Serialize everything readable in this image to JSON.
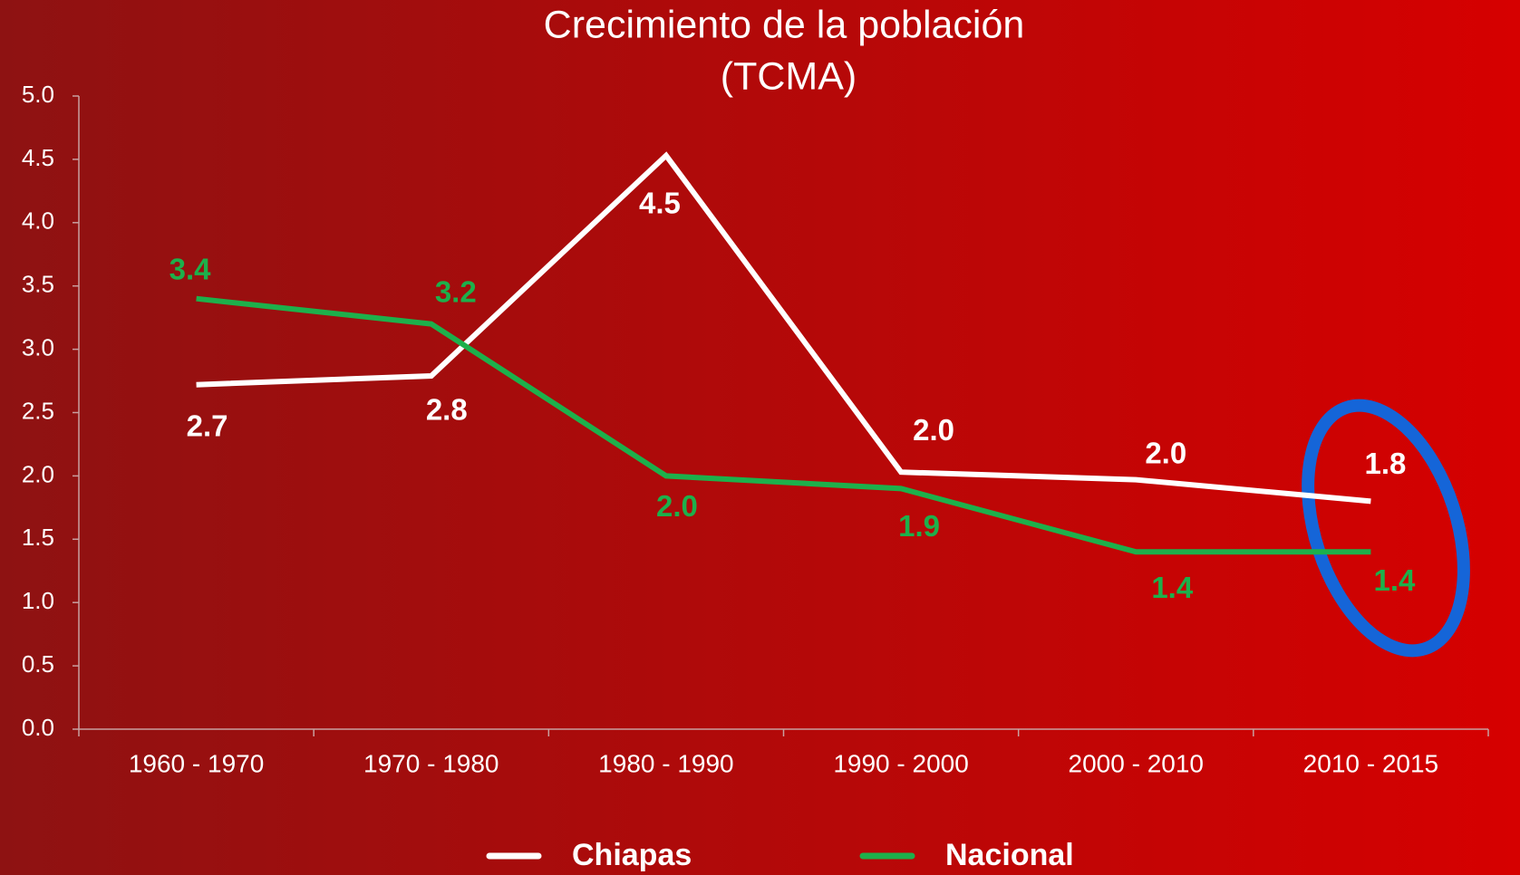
{
  "chart_data": {
    "type": "line",
    "title": "Crecimiento de la población",
    "subtitle": "(TCMA)",
    "categories": [
      "1960 - 1970",
      "1970 - 1980",
      "1980 - 1990",
      "1990 - 2000",
      "2000 - 2010",
      "2010 - 2015"
    ],
    "series": [
      {
        "name": "Chiapas",
        "color": "#ffffff",
        "values": [
          2.72,
          2.79,
          4.53,
          2.03,
          1.97,
          1.8
        ],
        "value_labels": [
          "2.7",
          "2.8",
          "4.5",
          "2.0",
          "2.0",
          "1.8"
        ]
      },
      {
        "name": "Nacional",
        "color": "#1db04b",
        "values": [
          3.4,
          3.2,
          2.0,
          1.9,
          1.4,
          1.4
        ],
        "value_labels": [
          "3.4",
          "3.2",
          "2.0",
          "1.9",
          "1.4",
          "1.4"
        ]
      }
    ],
    "ylim": [
      0,
      5
    ],
    "yticks": [
      {
        "value": 0,
        "label": "0.0"
      },
      0.5,
      {
        "value": 1,
        "label": "1.0"
      },
      1.5,
      {
        "value": 2,
        "label": "2.0"
      },
      2.5,
      {
        "value": 3,
        "label": "3.0"
      },
      3.5,
      {
        "value": 4,
        "label": "4.0"
      },
      4.5,
      {
        "value": 5,
        "label": "5.0"
      }
    ],
    "grid": false
  }
}
